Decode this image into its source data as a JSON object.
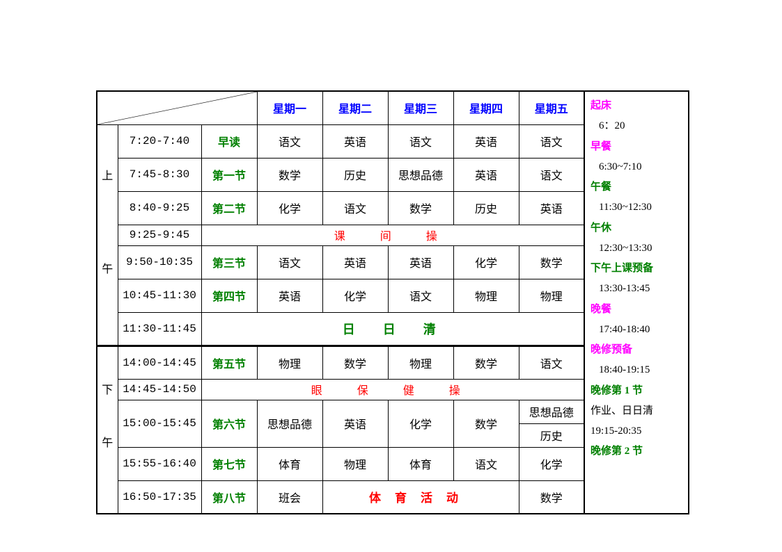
{
  "headers": {
    "days": [
      "星期一",
      "星期二",
      "星期三",
      "星期四",
      "星期五"
    ]
  },
  "morning": {
    "ampm": "上",
    "ampm2": "午",
    "rows": [
      {
        "time": "7:20-7:40",
        "period": "早读",
        "cells": [
          "语文",
          "英语",
          "语文",
          "英语",
          "语文"
        ]
      },
      {
        "time": "7:45-8:30",
        "period": "第一节",
        "cells": [
          "数学",
          "历史",
          "思想品德",
          "英语",
          "语文"
        ]
      },
      {
        "time": "8:40-9:25",
        "period": "第二节",
        "cells": [
          "化学",
          "语文",
          "数学",
          "历史",
          "英语"
        ]
      }
    ],
    "break1": {
      "time": "9:25-9:45",
      "label": "课间操"
    },
    "rows2": [
      {
        "time": "9:50-10:35",
        "period": "第三节",
        "cells": [
          "语文",
          "英语",
          "英语",
          "化学",
          "数学"
        ]
      },
      {
        "time": "10:45-11:30",
        "period": "第四节",
        "cells": [
          "英语",
          "化学",
          "语文",
          "物理",
          "物理"
        ]
      }
    ],
    "clear": {
      "time": "11:30-11:45",
      "label": "日日清"
    }
  },
  "afternoon": {
    "ampm": "下",
    "ampm2": "午",
    "rows": [
      {
        "time": "14:00-14:45",
        "period": "第五节",
        "cells": [
          "物理",
          "数学",
          "物理",
          "数学",
          "语文"
        ]
      }
    ],
    "eyebreak": {
      "time": "14:45-14:50",
      "label": "眼保健操"
    },
    "row6": {
      "time": "15:00-15:45",
      "period": "第六节",
      "cells": [
        "思想品德",
        "英语",
        "化学",
        "数学"
      ],
      "fri_top": "思想品德",
      "fri_bot": "历史"
    },
    "rows2": [
      {
        "time": "15:55-16:40",
        "period": "第七节",
        "cells": [
          "体育",
          "物理",
          "体育",
          "语文",
          "化学"
        ]
      }
    ],
    "row8": {
      "time": "16:50-17:35",
      "period": "第八节",
      "mon": "班会",
      "sport": "体育活动",
      "fri": "数学"
    }
  },
  "side": [
    {
      "label": "起床",
      "cls": "pink",
      "time": "6：20"
    },
    {
      "label": "早餐",
      "cls": "pink",
      "time": "6:30~7:10"
    },
    {
      "label": "午餐",
      "cls": "green",
      "time": "11:30~12:30"
    },
    {
      "label": "午休",
      "cls": "green",
      "time": "12:30~13:30"
    },
    {
      "label": "下午上课预备",
      "cls": "green",
      "time": "13:30-13:45"
    },
    {
      "label": "晚餐",
      "cls": "pink",
      "time": "17:40-18:40"
    },
    {
      "label": "晚修预备",
      "cls": "pink",
      "time": "18:40-19:15"
    },
    {
      "label": "晚修第 1 节",
      "cls": "green",
      "time": "作业、日日清\n19:15-20:35",
      "plain": true
    },
    {
      "label": "晚修第 2 节",
      "cls": "green",
      "time": ""
    }
  ],
  "colors": {
    "day_header": "#0000ff",
    "period": "#008000",
    "red": "#ff0000",
    "pink": "#ff00ff",
    "green": "#008000",
    "border": "#000000"
  }
}
